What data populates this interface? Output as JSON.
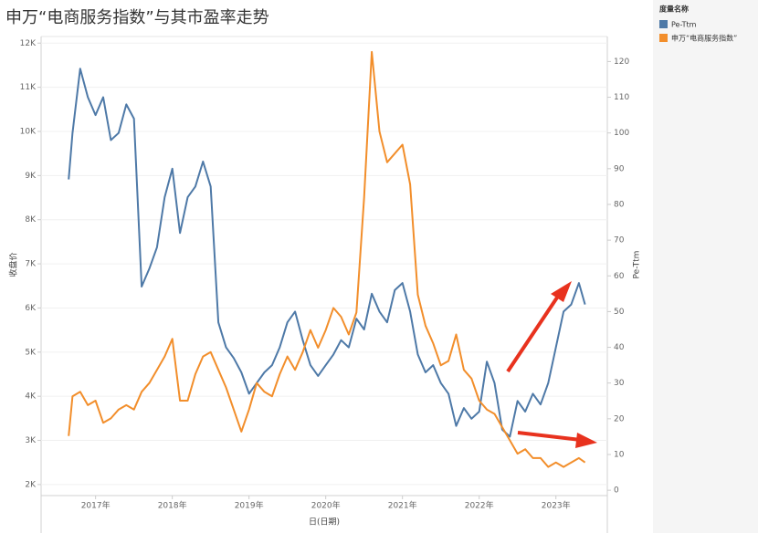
{
  "chart_data": {
    "type": "line",
    "title": "申万“电商服务指数”与其市盈率走势",
    "x_label": "日(日期)",
    "y_label": "收盘价",
    "y2_label": "Pe-Ttm",
    "legend_title": "度量名称",
    "x": [
      2016.65,
      2016.7,
      2016.8,
      2016.9,
      2017.0,
      2017.1,
      2017.2,
      2017.3,
      2017.4,
      2017.5,
      2017.6,
      2017.7,
      2017.8,
      2017.9,
      2018.0,
      2018.1,
      2018.2,
      2018.3,
      2018.4,
      2018.5,
      2018.6,
      2018.7,
      2018.8,
      2018.9,
      2019.0,
      2019.1,
      2019.2,
      2019.3,
      2019.4,
      2019.5,
      2019.6,
      2019.7,
      2019.8,
      2019.9,
      2020.0,
      2020.1,
      2020.2,
      2020.3,
      2020.4,
      2020.5,
      2020.6,
      2020.7,
      2020.8,
      2020.9,
      2021.0,
      2021.1,
      2021.2,
      2021.3,
      2021.4,
      2021.5,
      2021.6,
      2021.7,
      2021.8,
      2021.9,
      2022.0,
      2022.1,
      2022.2,
      2022.3,
      2022.4,
      2022.5,
      2022.6,
      2022.7,
      2022.8,
      2022.9,
      2023.0,
      2023.1,
      2023.2,
      2023.3,
      2023.38
    ],
    "series": [
      {
        "name": "Pe-Ttm",
        "color": "#4e79a7",
        "axis": "y2",
        "values": [
          87,
          100,
          118,
          110,
          105,
          110,
          98,
          100,
          108,
          104,
          57,
          62,
          68,
          82,
          90,
          72,
          82,
          85,
          92,
          85,
          47,
          40,
          37,
          33,
          27,
          30,
          33,
          35,
          40,
          47,
          50,
          42,
          35,
          32,
          35,
          38,
          42,
          40,
          48,
          45,
          55,
          50,
          47,
          56,
          58,
          50,
          38,
          33,
          35,
          30,
          27,
          18,
          23,
          20,
          22,
          36,
          30,
          17,
          15,
          25,
          22,
          27,
          24,
          30,
          40,
          50,
          52,
          58,
          52
        ]
      },
      {
        "name": "申万“电商服务指数”",
        "color": "#f28e2b",
        "axis": "y",
        "values": [
          3100,
          4000,
          4100,
          3800,
          3900,
          3400,
          3500,
          3700,
          3800,
          3700,
          4100,
          4300,
          4600,
          4900,
          5300,
          3900,
          3900,
          4500,
          4900,
          5000,
          4600,
          4200,
          3700,
          3200,
          3700,
          4300,
          4100,
          4000,
          4500,
          4900,
          4600,
          5000,
          5500,
          5100,
          5500,
          6000,
          5800,
          5400,
          5900,
          8500,
          11800,
          10000,
          9300,
          9500,
          9700,
          8800,
          6300,
          5600,
          5200,
          4700,
          4800,
          5400,
          4600,
          4400,
          3900,
          3700,
          3600,
          3300,
          3000,
          2700,
          2800,
          2600,
          2600,
          2400,
          2500,
          2400,
          2500,
          2600,
          2500
        ]
      }
    ],
    "xlim": [
      2016.29,
      2023.67
    ],
    "xticks": [
      {
        "value": 2017,
        "label": "2017年"
      },
      {
        "value": 2018,
        "label": "2018年"
      },
      {
        "value": 2019,
        "label": "2019年"
      },
      {
        "value": 2020,
        "label": "2020年"
      },
      {
        "value": 2021,
        "label": "2021年"
      },
      {
        "value": 2022,
        "label": "2022年"
      },
      {
        "value": 2023,
        "label": "2023年"
      }
    ],
    "ylim": [
      1750,
      12150
    ],
    "yticks": [
      {
        "value": 2000,
        "label": "2K"
      },
      {
        "value": 3000,
        "label": "3K"
      },
      {
        "value": 4000,
        "label": "4K"
      },
      {
        "value": 5000,
        "label": "5K"
      },
      {
        "value": 6000,
        "label": "6K"
      },
      {
        "value": 7000,
        "label": "7K"
      },
      {
        "value": 8000,
        "label": "8K"
      },
      {
        "value": 9000,
        "label": "9K"
      },
      {
        "value": 10000,
        "label": "10K"
      },
      {
        "value": 11000,
        "label": "11K"
      },
      {
        "value": 12000,
        "label": "12K"
      }
    ],
    "y2lim": [
      -1.5,
      127
    ],
    "y2ticks": [
      0,
      10,
      20,
      30,
      40,
      50,
      60,
      70,
      80,
      90,
      100,
      110,
      120
    ],
    "grid": true
  }
}
